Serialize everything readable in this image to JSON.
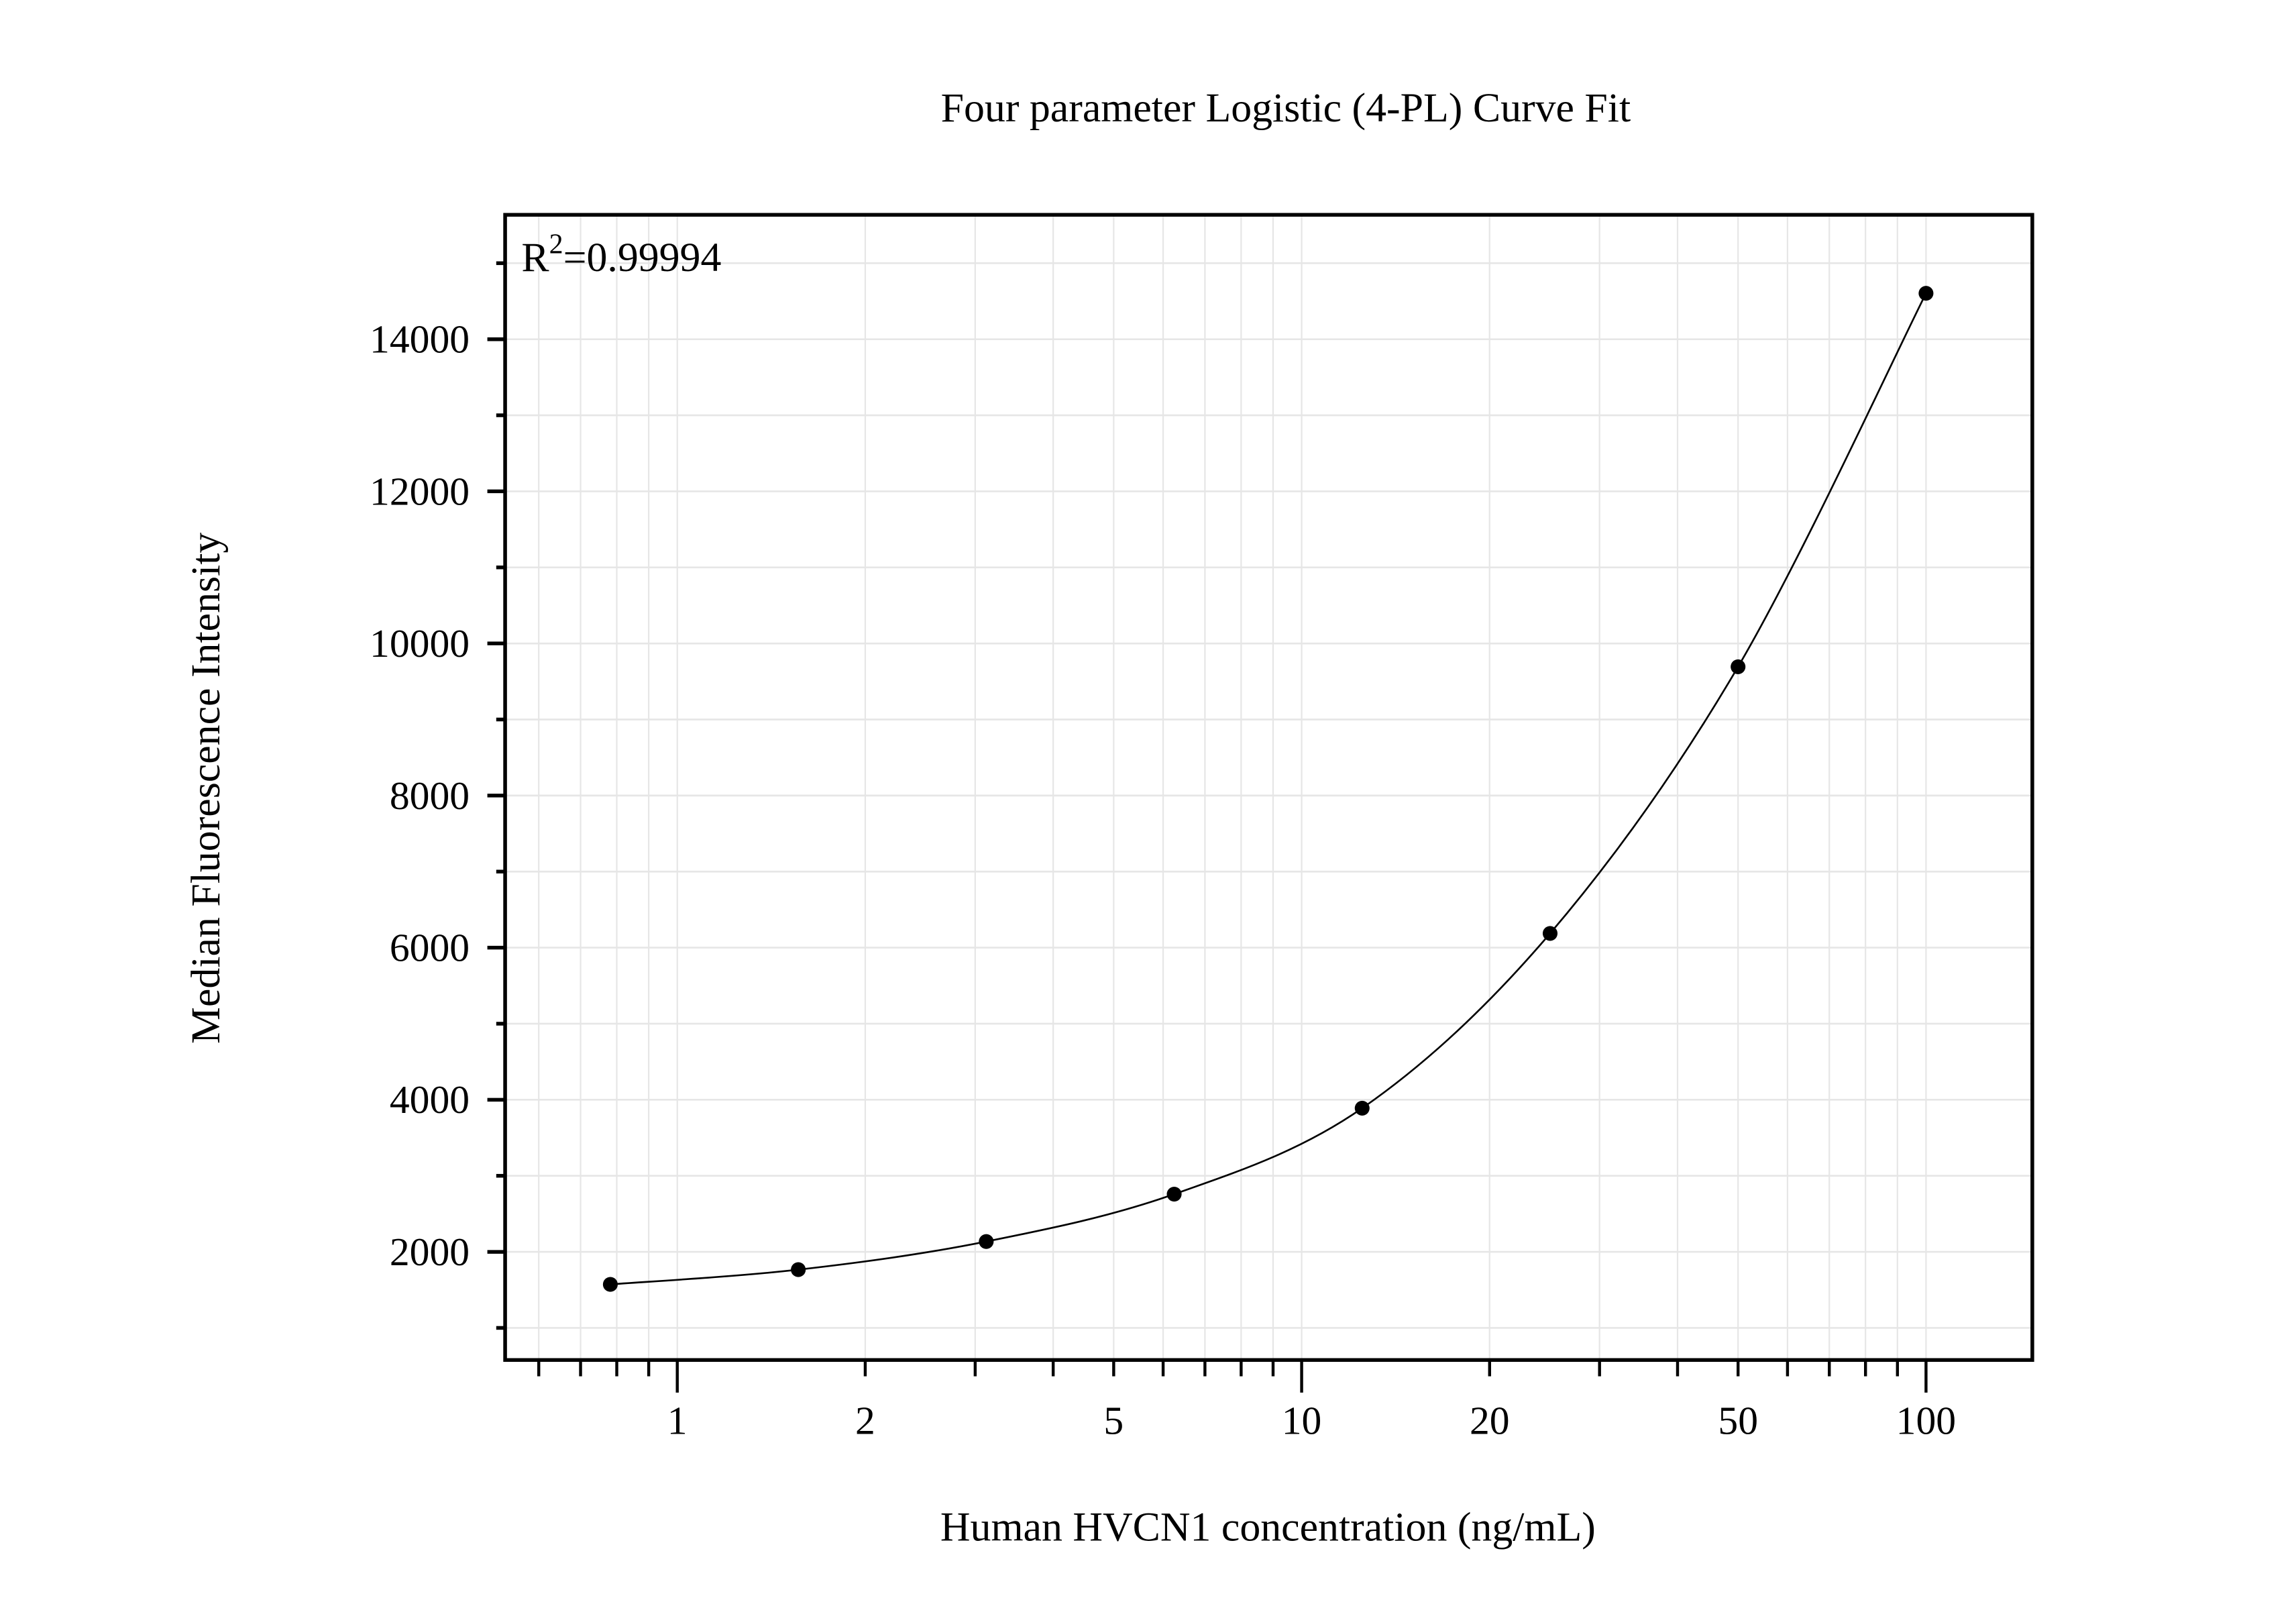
{
  "chart_data": {
    "type": "scatter",
    "title": "Four parameter Logistic (4-PL) Curve Fit",
    "xlabel": "Human HVCN1 concentration (ng/mL)",
    "ylabel": "Median Fluorescence Intensity",
    "x_scale": "log",
    "xlim": [
      0.53,
      148
    ],
    "ylim": [
      578,
      15636
    ],
    "x_ticks": [
      1,
      2,
      5,
      10,
      20,
      50,
      100
    ],
    "x_tick_labels": [
      "1",
      "2",
      "5",
      "10",
      "20",
      "50",
      "100"
    ],
    "y_ticks": [
      2000,
      4000,
      6000,
      8000,
      10000,
      12000,
      14000
    ],
    "y_tick_labels": [
      "2000",
      "4000",
      "6000",
      "8000",
      "10000",
      "12000",
      "14000"
    ],
    "grid": true,
    "annotation": {
      "base": "R",
      "sup": "2",
      "rest": "=0.99994"
    },
    "series": [
      {
        "x": [
          0.78125,
          1.5625,
          3.125,
          6.25,
          12.5,
          25,
          50,
          100
        ],
        "y": [
          1572,
          1766,
          2136,
          2759,
          3889,
          6187,
          9693,
          14604
        ],
        "fit": "4-PL curve",
        "marker_color": "#000000",
        "line_color": "#000000"
      }
    ]
  }
}
